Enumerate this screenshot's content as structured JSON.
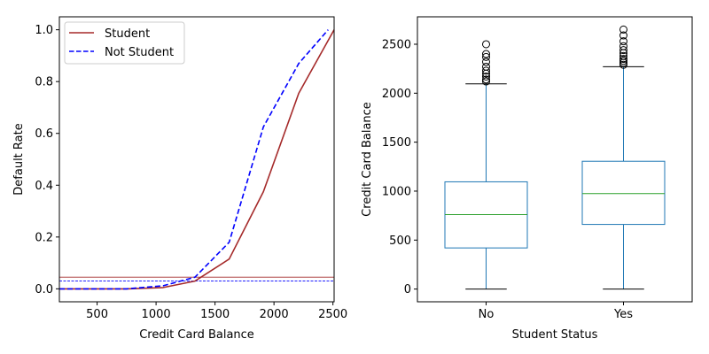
{
  "chart_data": [
    {
      "type": "line",
      "xlabel": "Credit Card Balance",
      "ylabel": "Default Rate",
      "xlim": [
        180,
        2510
      ],
      "ylim": [
        -0.05,
        1.05
      ],
      "xticks": [
        {
          "value": 500,
          "label": "500"
        },
        {
          "value": 1000,
          "label": "1000"
        },
        {
          "value": 1500,
          "label": "1500"
        },
        {
          "value": 2000,
          "label": "2000"
        },
        {
          "value": 2500,
          "label": "2500"
        }
      ],
      "yticks": [
        {
          "value": 0.0,
          "label": "0.0"
        },
        {
          "value": 0.2,
          "label": "0.2"
        },
        {
          "value": 0.4,
          "label": "0.4"
        },
        {
          "value": 0.6,
          "label": "0.6"
        },
        {
          "value": 0.8,
          "label": "0.8"
        },
        {
          "value": 1.0,
          "label": "1.0"
        }
      ],
      "series": [
        {
          "name": "Student",
          "color": "#a52a2a",
          "dash": "solid",
          "x": [
            180,
            750,
            1060,
            1330,
            1620,
            1910,
            2210,
            2510
          ],
          "y": [
            0.0,
            0.0,
            0.005,
            0.03,
            0.115,
            0.375,
            0.755,
            1.0
          ]
        },
        {
          "name": "Not Student",
          "color": "#0000ff",
          "dash": "dashed",
          "x": [
            180,
            750,
            1060,
            1330,
            1620,
            1910,
            2210,
            2460
          ],
          "y": [
            0.0,
            0.0,
            0.012,
            0.045,
            0.18,
            0.625,
            0.87,
            1.0
          ]
        }
      ],
      "hlines": [
        {
          "series": "Student",
          "y": 0.045,
          "color": "#a52a2a",
          "dash": "solid"
        },
        {
          "series": "Not Student",
          "y": 0.03,
          "color": "#0000ff",
          "dash": "dashed"
        }
      ],
      "legend": {
        "placement": "top-left"
      }
    },
    {
      "type": "box",
      "xlabel": "Student Status",
      "ylabel": "Credit Card Balance",
      "ylim": [
        -130,
        2780
      ],
      "yticks": [
        {
          "value": 0,
          "label": "0"
        },
        {
          "value": 500,
          "label": "500"
        },
        {
          "value": 1000,
          "label": "1000"
        },
        {
          "value": 1500,
          "label": "1500"
        },
        {
          "value": 2000,
          "label": "2000"
        },
        {
          "value": 2500,
          "label": "2500"
        }
      ],
      "colors": {
        "box": "#1f77b4",
        "median": "#2ca02c",
        "whisker_cap": "#000000",
        "flier": "#000000"
      },
      "boxes": [
        {
          "category": "No",
          "min": 0,
          "q1": 420,
          "median": 760,
          "q3": 1095,
          "max": 2095,
          "outliers": [
            2120,
            2140,
            2170,
            2200,
            2230,
            2270,
            2320,
            2370,
            2400,
            2500
          ]
        },
        {
          "category": "Yes",
          "min": 0,
          "q1": 660,
          "median": 975,
          "q3": 1305,
          "max": 2270,
          "outliers": [
            2290,
            2310,
            2330,
            2350,
            2380,
            2410,
            2440,
            2480,
            2530,
            2590,
            2650
          ]
        }
      ]
    }
  ]
}
